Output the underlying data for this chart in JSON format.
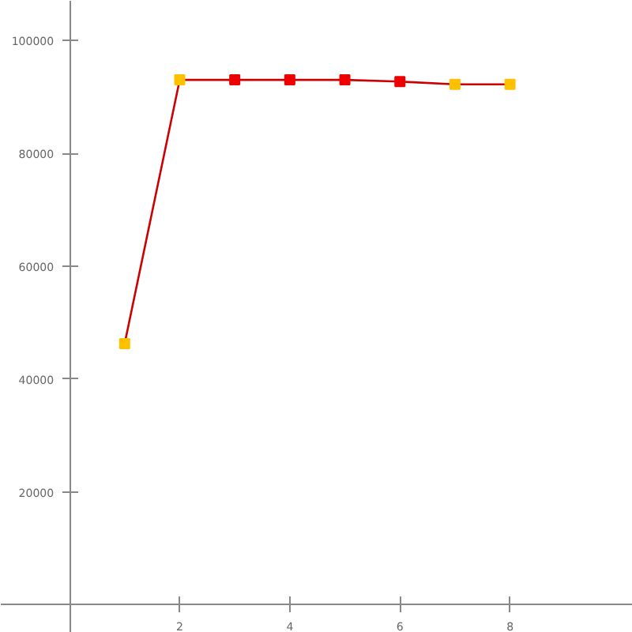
{
  "chart_data": {
    "type": "line",
    "x": [
      1,
      2,
      3,
      4,
      5,
      6,
      7,
      8
    ],
    "series": [
      {
        "color": "#cc0000",
        "values": [
          46300,
          93000,
          93000,
          93000,
          93000,
          92700,
          92200,
          92200
        ],
        "colors": [
          "#ffc000",
          "#ffc000",
          "#ee0000",
          "#ee0000",
          "#ee0000",
          "#ee0000",
          "#ffc000",
          "#ffc000"
        ]
      }
    ],
    "xlim": [
      -1.25,
      10.23
    ],
    "ylim": [
      -4900,
      107000
    ],
    "xticks": [
      2,
      4,
      6,
      8
    ],
    "yticks": [
      20000,
      40000,
      60000,
      80000,
      100000
    ],
    "grid": false,
    "marker": "square",
    "line_style": "solid"
  }
}
